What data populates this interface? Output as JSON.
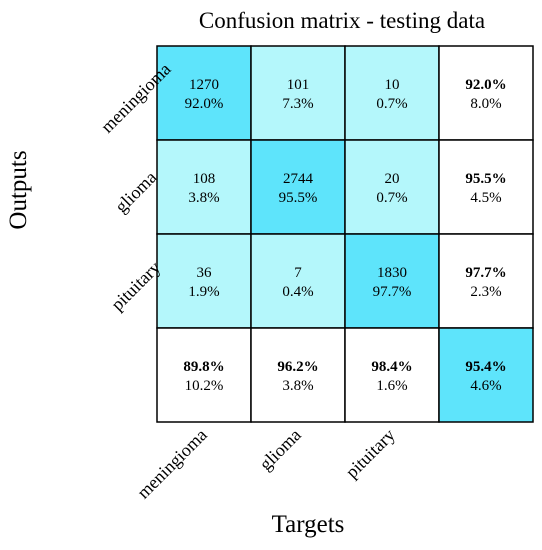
{
  "chart_data": {
    "type": "heatmap",
    "title": "Confusion matrix - testing data",
    "xlabel": "Targets",
    "ylabel": "Outputs",
    "classes": [
      "meningioma",
      "glioma",
      "pituitary"
    ],
    "matrix": [
      [
        {
          "count": "1270",
          "percent": "92.0%"
        },
        {
          "count": "101",
          "percent": "7.3%"
        },
        {
          "count": "10",
          "percent": "0.7%"
        }
      ],
      [
        {
          "count": "108",
          "percent": "3.8%"
        },
        {
          "count": "2744",
          "percent": "95.5%"
        },
        {
          "count": "20",
          "percent": "0.7%"
        }
      ],
      [
        {
          "count": "36",
          "percent": "1.9%"
        },
        {
          "count": "7",
          "percent": "0.4%"
        },
        {
          "count": "1830",
          "percent": "97.7%"
        }
      ]
    ],
    "row_summary": [
      {
        "correct": "92.0%",
        "error": "8.0%"
      },
      {
        "correct": "95.5%",
        "error": "4.5%"
      },
      {
        "correct": "97.7%",
        "error": "2.3%"
      }
    ],
    "col_summary": [
      {
        "correct": "89.8%",
        "error": "10.2%"
      },
      {
        "correct": "96.2%",
        "error": "3.8%"
      },
      {
        "correct": "98.4%",
        "error": "1.6%"
      }
    ],
    "overall": {
      "correct": "95.4%",
      "error": "4.6%"
    },
    "colors": {
      "diagonal": "#5ee4fb",
      "off_diagonal": "#b4f7fb",
      "summary": "#ffffff",
      "overall": "#5ee4fb",
      "grid": "#000000"
    }
  }
}
